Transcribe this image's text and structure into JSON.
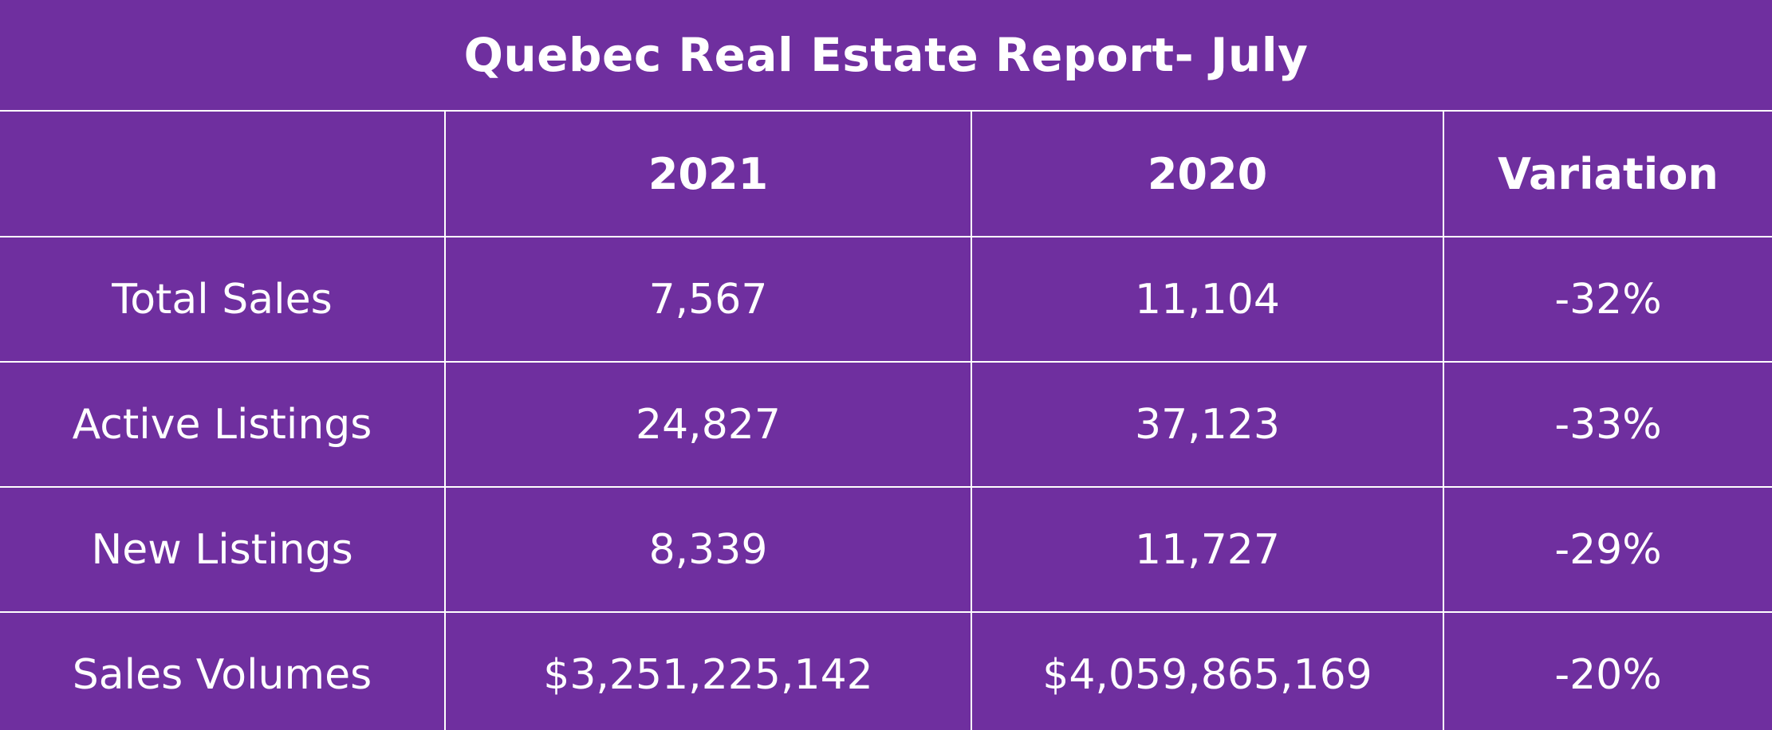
{
  "chart_data": {
    "type": "table",
    "title": "Quebec Real Estate Report- July",
    "columns": [
      "",
      "2021",
      "2020",
      "Variation"
    ],
    "rows": [
      {
        "label": "Total Sales",
        "values": [
          "7,567",
          "11,104",
          "-32%"
        ]
      },
      {
        "label": "Active Listings",
        "values": [
          "24,827",
          "37,123",
          "-33%"
        ]
      },
      {
        "label": "New Listings",
        "values": [
          "8,339",
          "11,727",
          "-29%"
        ]
      },
      {
        "label": "Sales Volumes",
        "values": [
          "$3,251,225,142",
          "$4,059,865,169",
          "-20%"
        ]
      }
    ]
  },
  "colors": {
    "background": "#6f2f9f",
    "text": "#ffffff",
    "grid": "#ffffff"
  }
}
